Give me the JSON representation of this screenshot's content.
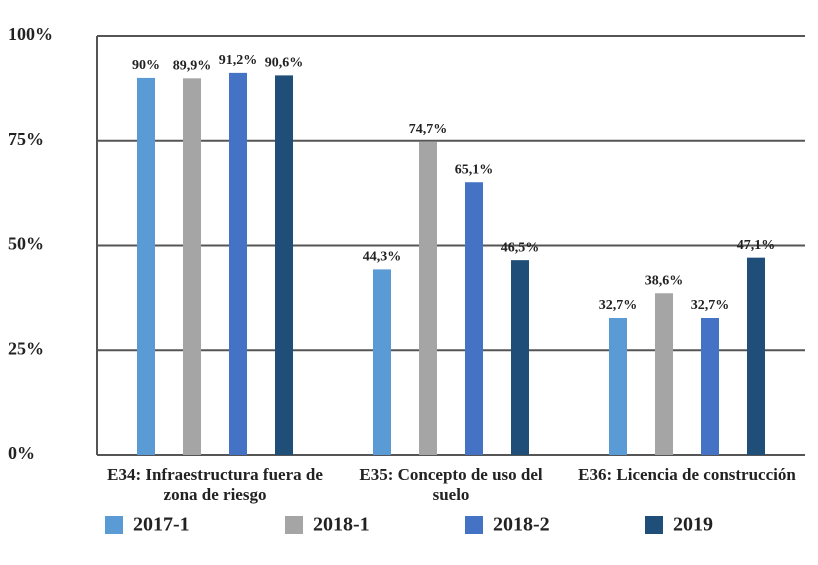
{
  "chart_data": {
    "type": "bar",
    "categories": [
      "E34: Infraestructura fuera de zona de riesgo",
      "E35: Concepto de uso del suelo",
      "E36: Licencia de construcción"
    ],
    "series": [
      {
        "name": "2017-1",
        "color": "#5b9bd5",
        "values": [
          90,
          44.3,
          32.7
        ],
        "value_labels": [
          "90%",
          "44,3%",
          "32,7%"
        ]
      },
      {
        "name": "2018-1",
        "color": "#a5a5a5",
        "values": [
          89.9,
          74.7,
          38.6
        ],
        "value_labels": [
          "89,9%",
          "74,7%",
          "38,6%"
        ]
      },
      {
        "name": "2018-2",
        "color": "#4472c4",
        "values": [
          91.2,
          65.1,
          32.7
        ],
        "value_labels": [
          "91,2%",
          "65,1%",
          "32,7%"
        ]
      },
      {
        "name": "2019",
        "color": "#1f4e79",
        "values": [
          90.6,
          46.5,
          47.1
        ],
        "value_labels": [
          "90,6%",
          "46,5%",
          "47,1%"
        ]
      }
    ],
    "ylim": [
      0,
      100
    ],
    "yticks": [
      {
        "value": 0,
        "label": "0%"
      },
      {
        "value": 25,
        "label": "25%"
      },
      {
        "value": 50,
        "label": "50%"
      },
      {
        "value": 75,
        "label": "75%"
      },
      {
        "value": 100,
        "label": "100%"
      }
    ],
    "grid": true,
    "legend": "bottom"
  }
}
